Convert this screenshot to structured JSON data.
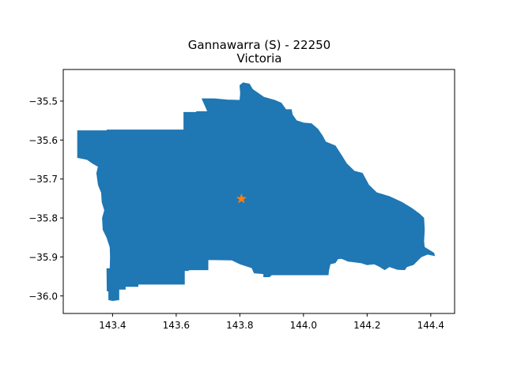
{
  "chart_data": {
    "type": "map",
    "title": "Gannawarra (S) - 22250",
    "subtitle": "Victoria",
    "xlabel": "",
    "ylabel": "",
    "xlim": [
      143.245,
      144.475
    ],
    "ylim": [
      -36.045,
      -35.419
    ],
    "xticks": [
      143.4,
      143.6,
      143.8,
      144.0,
      144.2,
      144.4
    ],
    "xtick_labels": [
      "143.4",
      "143.6",
      "143.8",
      "144.0",
      "144.2",
      "144.4"
    ],
    "yticks": [
      -35.5,
      -35.6,
      -35.7,
      -35.8,
      -35.9,
      -36.0
    ],
    "ytick_labels": [
      "−35.5",
      "−35.6",
      "−35.7",
      "−35.8",
      "−35.9",
      "−36.0"
    ],
    "grid": false,
    "region": {
      "fill_color": "#1f77b4",
      "outline": [
        [
          143.29,
          -35.576
        ],
        [
          143.382,
          -35.576
        ],
        [
          143.383,
          -35.574
        ],
        [
          143.624,
          -35.574
        ],
        [
          143.624,
          -35.529
        ],
        [
          143.664,
          -35.529
        ],
        [
          143.664,
          -35.527
        ],
        [
          143.699,
          -35.527
        ],
        [
          143.681,
          -35.494
        ],
        [
          143.72,
          -35.494
        ],
        [
          143.76,
          -35.497
        ],
        [
          143.8,
          -35.498
        ],
        [
          143.802,
          -35.48
        ],
        [
          143.8,
          -35.46
        ],
        [
          143.81,
          -35.453
        ],
        [
          143.83,
          -35.456
        ],
        [
          143.84,
          -35.47
        ],
        [
          143.875,
          -35.49
        ],
        [
          143.91,
          -35.498
        ],
        [
          143.93,
          -35.505
        ],
        [
          143.945,
          -35.522
        ],
        [
          143.962,
          -35.522
        ],
        [
          143.965,
          -35.535
        ],
        [
          143.978,
          -35.55
        ],
        [
          144.0,
          -35.556
        ],
        [
          144.025,
          -35.558
        ],
        [
          144.045,
          -35.572
        ],
        [
          144.06,
          -35.59
        ],
        [
          144.07,
          -35.605
        ],
        [
          144.1,
          -35.615
        ],
        [
          144.12,
          -35.64
        ],
        [
          144.135,
          -35.66
        ],
        [
          144.16,
          -35.68
        ],
        [
          144.185,
          -35.685
        ],
        [
          144.205,
          -35.715
        ],
        [
          144.23,
          -35.735
        ],
        [
          144.27,
          -35.745
        ],
        [
          144.31,
          -35.76
        ],
        [
          144.34,
          -35.775
        ],
        [
          144.365,
          -35.79
        ],
        [
          144.378,
          -35.8
        ],
        [
          144.38,
          -35.83
        ],
        [
          144.378,
          -35.86
        ],
        [
          144.38,
          -35.875
        ],
        [
          144.41,
          -35.89
        ],
        [
          144.412,
          -35.897
        ],
        [
          144.39,
          -35.893
        ],
        [
          144.37,
          -35.9
        ],
        [
          144.355,
          -35.912
        ],
        [
          144.345,
          -35.92
        ],
        [
          144.325,
          -35.925
        ],
        [
          144.318,
          -35.933
        ],
        [
          144.295,
          -35.932
        ],
        [
          144.27,
          -35.925
        ],
        [
          144.255,
          -35.933
        ],
        [
          144.24,
          -35.925
        ],
        [
          144.222,
          -35.918
        ],
        [
          144.2,
          -35.92
        ],
        [
          144.18,
          -35.915
        ],
        [
          144.14,
          -35.911
        ],
        [
          144.12,
          -35.904
        ],
        [
          144.108,
          -35.905
        ],
        [
          144.1,
          -35.915
        ],
        [
          144.084,
          -35.918
        ],
        [
          144.079,
          -35.936
        ],
        [
          144.078,
          -35.946
        ],
        [
          143.9,
          -35.946
        ],
        [
          143.893,
          -35.951
        ],
        [
          143.875,
          -35.951
        ],
        [
          143.875,
          -35.943
        ],
        [
          143.845,
          -35.941
        ],
        [
          143.838,
          -35.928
        ],
        [
          143.8,
          -35.918
        ],
        [
          143.775,
          -35.908
        ],
        [
          143.7,
          -35.907
        ],
        [
          143.7,
          -35.933
        ],
        [
          143.64,
          -35.933
        ],
        [
          143.638,
          -35.935
        ],
        [
          143.626,
          -35.935
        ],
        [
          143.626,
          -35.97
        ],
        [
          143.48,
          -35.97
        ],
        [
          143.48,
          -35.976
        ],
        [
          143.44,
          -35.976
        ],
        [
          143.44,
          -35.983
        ],
        [
          143.42,
          -35.983
        ],
        [
          143.42,
          -36.01
        ],
        [
          143.4,
          -36.012
        ],
        [
          143.388,
          -36.01
        ],
        [
          143.388,
          -35.988
        ],
        [
          143.383,
          -35.987
        ],
        [
          143.382,
          -35.93
        ],
        [
          143.392,
          -35.93
        ],
        [
          143.393,
          -35.9
        ],
        [
          143.392,
          -35.875
        ],
        [
          143.382,
          -35.85
        ],
        [
          143.37,
          -35.83
        ],
        [
          143.368,
          -35.8
        ],
        [
          143.375,
          -35.78
        ],
        [
          143.367,
          -35.76
        ],
        [
          143.365,
          -35.735
        ],
        [
          143.355,
          -35.715
        ],
        [
          143.35,
          -35.685
        ],
        [
          143.355,
          -35.668
        ],
        [
          143.338,
          -35.66
        ],
        [
          143.32,
          -35.65
        ],
        [
          143.29,
          -35.645
        ]
      ]
    },
    "marker": {
      "symbol": "star",
      "x": 143.805,
      "y": -35.751,
      "color": "#ff7f0e"
    }
  }
}
